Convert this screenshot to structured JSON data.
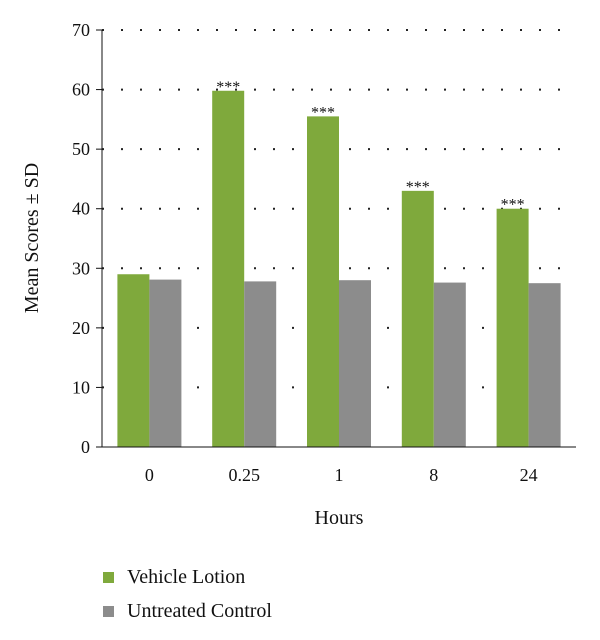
{
  "chart_data": {
    "type": "bar",
    "title": "",
    "xlabel": "Hours",
    "ylabel": "Mean Scores ± SD",
    "categories": [
      "0",
      "0.25",
      "1",
      "8",
      "24"
    ],
    "ylim": [
      0,
      70
    ],
    "yticks": [
      0,
      10,
      20,
      30,
      40,
      50,
      60,
      70
    ],
    "grid": "dotted horizontal",
    "legend_position": "bottom-left",
    "series": [
      {
        "name": "Vehicle Lotion",
        "color": "#7fa93c",
        "values": [
          29.0,
          59.8,
          55.5,
          43.0,
          40.0
        ],
        "annotations": [
          "",
          "***",
          "***",
          "***",
          "***"
        ]
      },
      {
        "name": "Untreated Control",
        "color": "#8c8c8c",
        "values": [
          28.1,
          27.8,
          28.0,
          27.6,
          27.5
        ],
        "annotations": [
          "",
          "",
          "",
          "",
          ""
        ]
      }
    ]
  }
}
